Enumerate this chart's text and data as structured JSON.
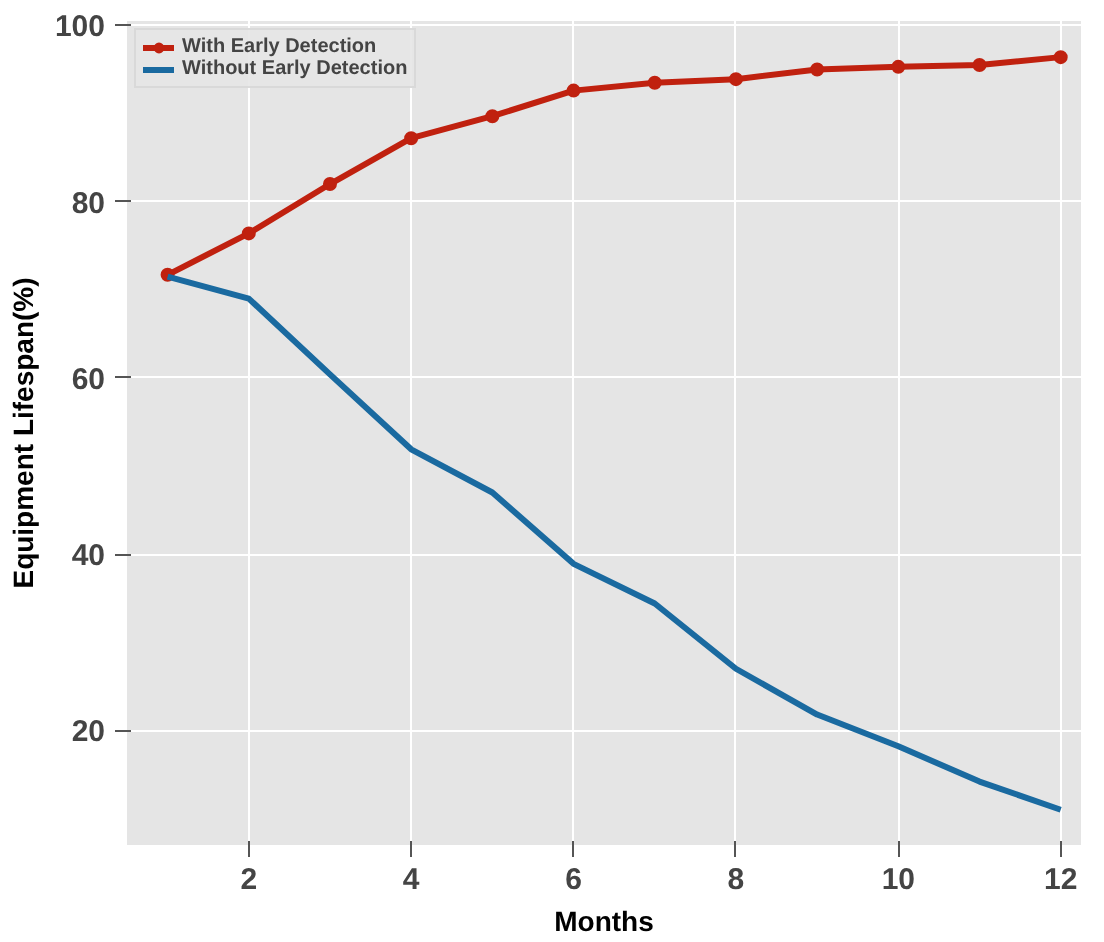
{
  "chart_data": {
    "type": "line",
    "xlabel": "Months",
    "ylabel": "Equipment Lifespan(%)",
    "x": [
      1,
      2,
      3,
      4,
      5,
      6,
      7,
      8,
      9,
      10,
      11,
      12
    ],
    "series": [
      {
        "name": "With Early Detection",
        "color": "#c0210f",
        "marker": "circle",
        "values": [
          71.7,
          76.4,
          82,
          87.2,
          89.7,
          92.6,
          93.5,
          93.9,
          95,
          95.3,
          95.5,
          96.4
        ]
      },
      {
        "name": "Without Early Detection",
        "color": "#1a6aa0",
        "marker": "none",
        "values": [
          71.5,
          69,
          60.4,
          51.9,
          47,
          38.9,
          34.4,
          27,
          21.8,
          18.2,
          14.2,
          11
        ]
      }
    ],
    "xlim": [
      0.5,
      12.25
    ],
    "ylim": [
      7,
      100.5
    ],
    "xticks": [
      2,
      4,
      6,
      8,
      10,
      12
    ],
    "yticks": [
      20,
      40,
      60,
      80,
      100
    ],
    "grid": true,
    "legend": "top left",
    "line_style": "solid"
  }
}
